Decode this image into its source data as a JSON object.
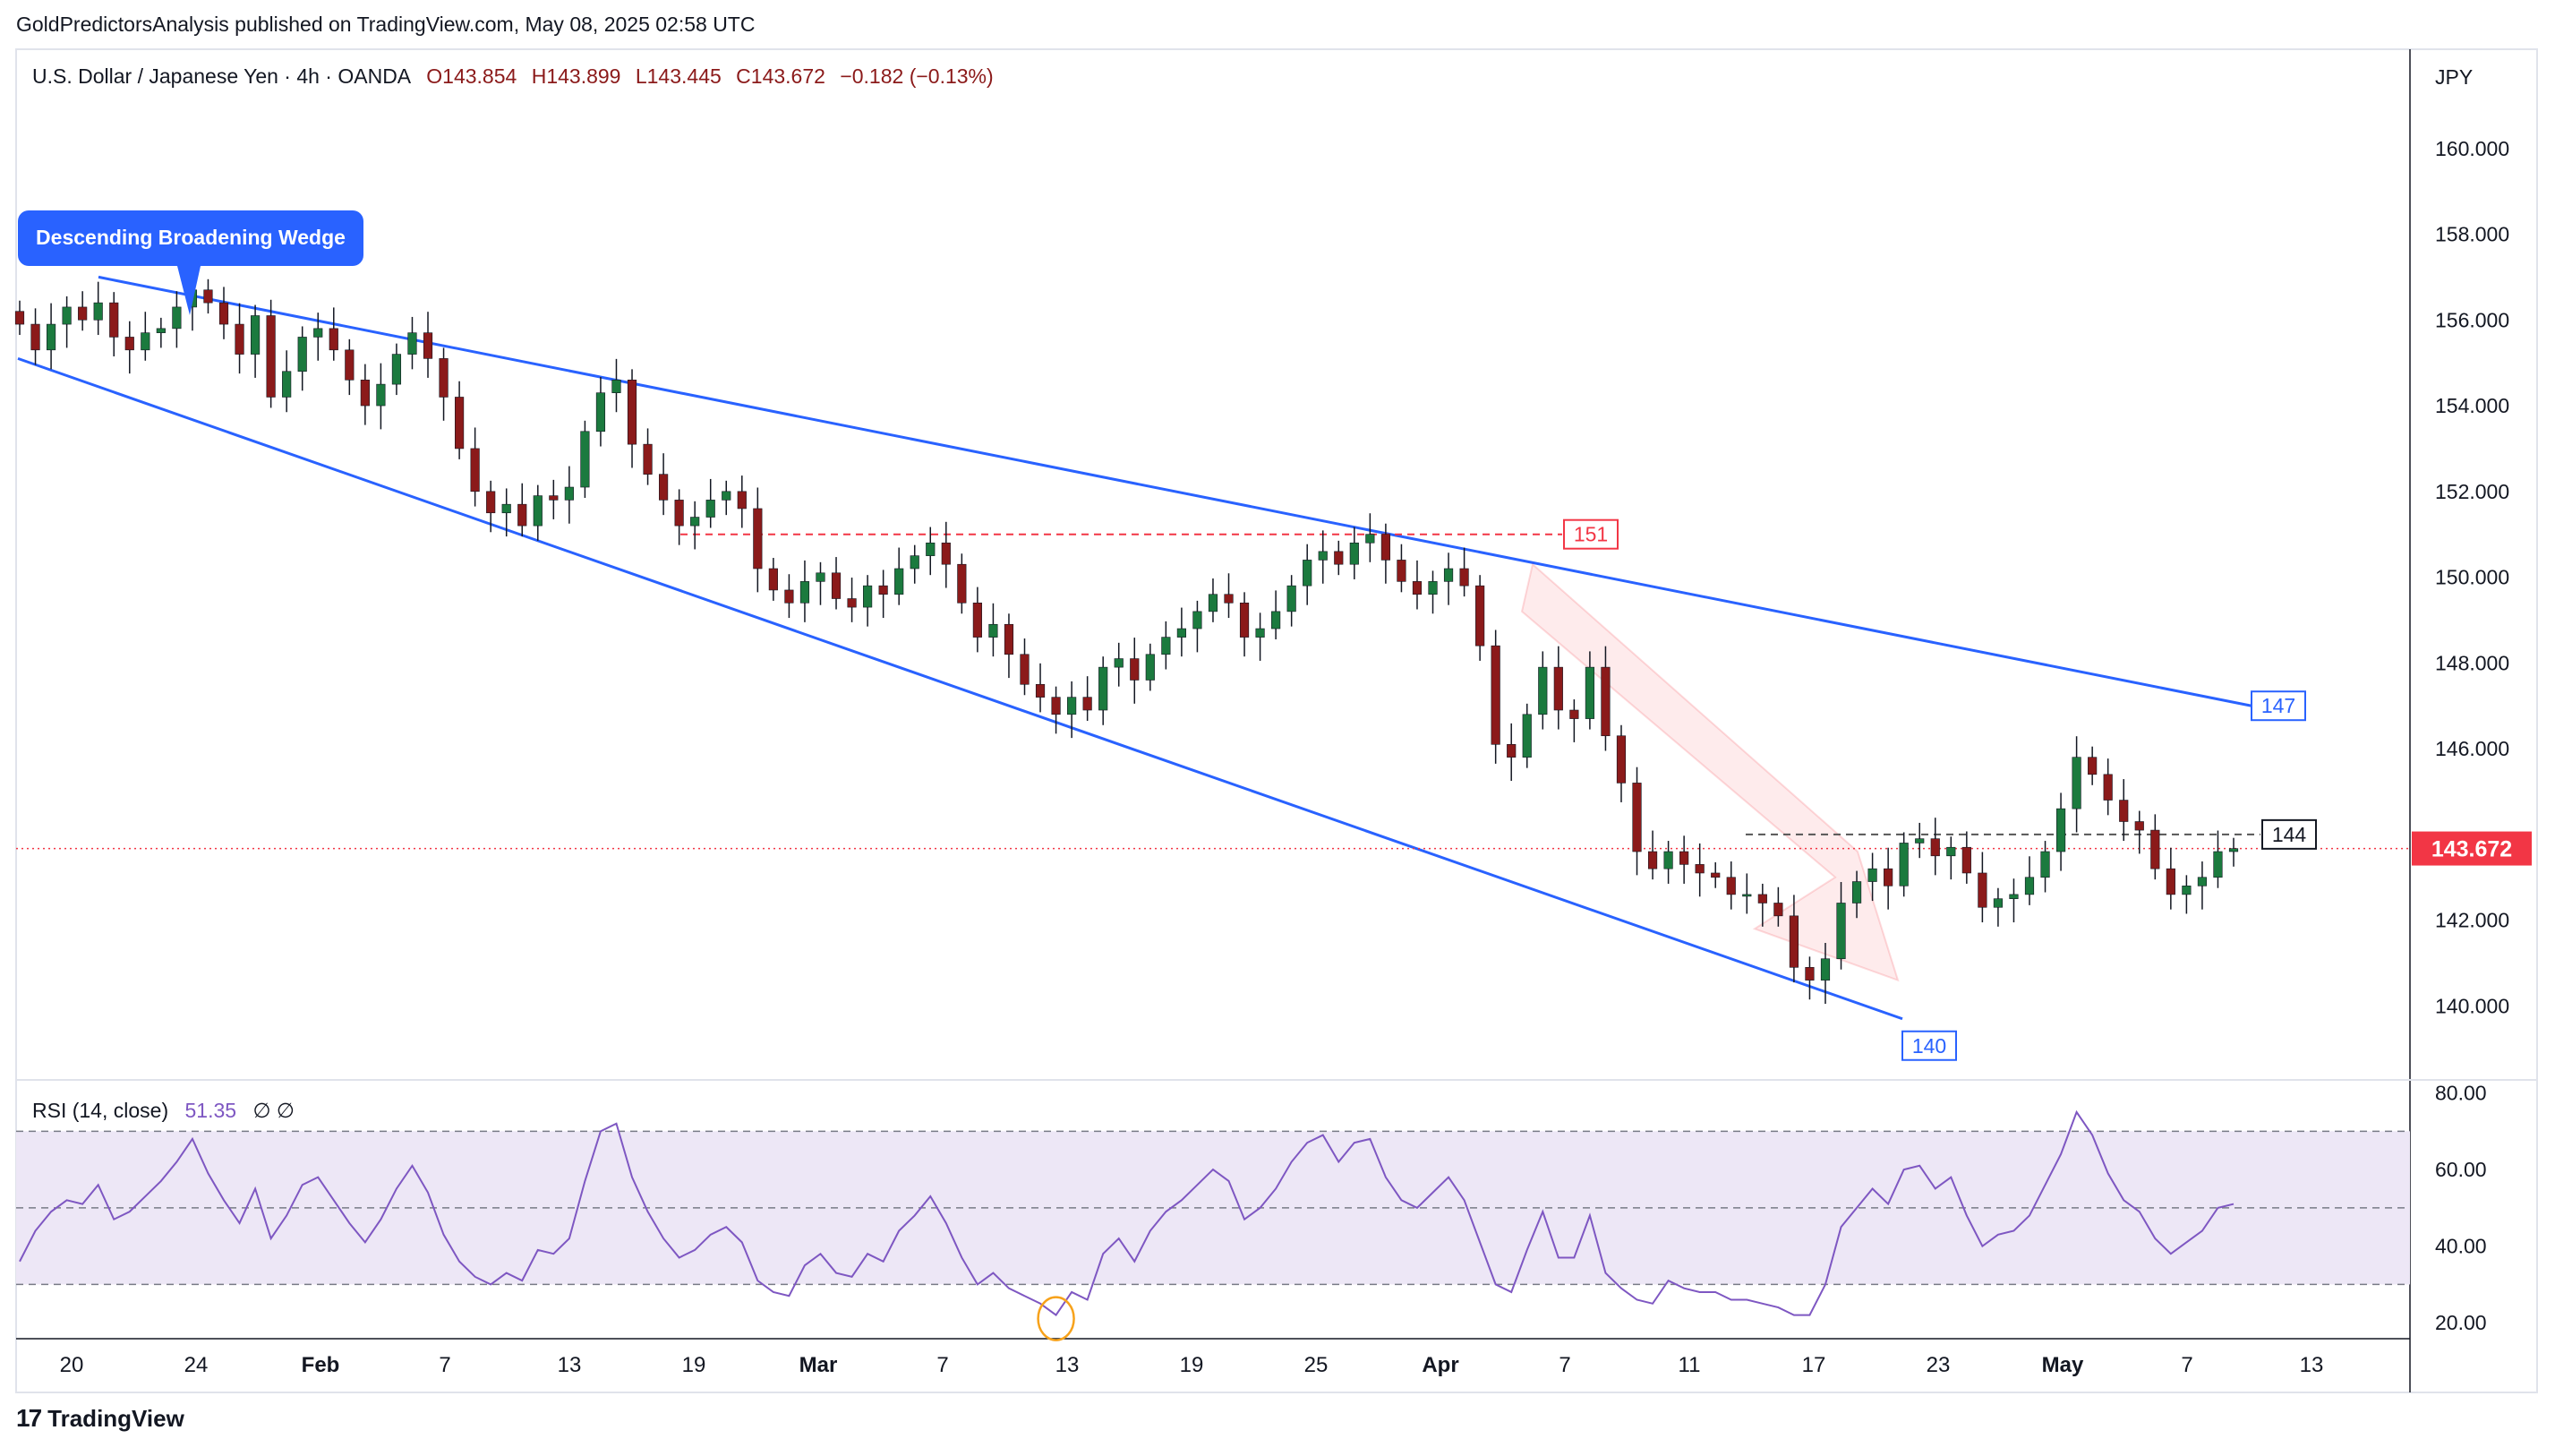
{
  "header": {
    "publish_line": "GoldPredictorsAnalysis published on TradingView.com, May 08, 2025 02:58 UTC"
  },
  "legend": {
    "symbol": "U.S. Dollar / Japanese Yen · 4h · OANDA",
    "open": "O143.854",
    "high": "H143.899",
    "low": "L143.445",
    "close": "C143.672",
    "change": "−0.182 (−0.13%)"
  },
  "currency_label": "JPY",
  "pattern_callout": "Descending Broadening Wedge",
  "level_labels": {
    "upper_line_end": "147",
    "lower_line_end": "140",
    "resistance": "151",
    "target": "144"
  },
  "last_price_tag": "143.672",
  "rsi": {
    "title": "RSI (14, close)",
    "value": "51.35",
    "flags": "∅ ∅"
  },
  "branding": {
    "logo_text": "TradingView",
    "logo_mark": "17"
  },
  "colors": {
    "candle_up": "#26a69a",
    "candle_down": "#ef5350",
    "candle_body_up": "#1b7a3e",
    "candle_body_down": "#8b1a1a",
    "trendline": "#2962ff",
    "resistance": "#f23645",
    "rsi_line": "#7e57c2",
    "rsi_band": "#ede7f6",
    "last_price": "#f23645",
    "callout": "#2962ff"
  },
  "chart_data": [
    {
      "type": "candlestick",
      "title": "U.S. Dollar / Japanese Yen · 4h · OANDA",
      "price_axis": {
        "ticks": [
          "160.000",
          "158.000",
          "156.000",
          "154.000",
          "152.000",
          "150.000",
          "148.000",
          "146.000",
          "142.000",
          "140.000"
        ],
        "ylim": [
          138.4,
          162.0
        ]
      },
      "time_axis": {
        "ticks": [
          "20",
          "24",
          "Feb",
          "7",
          "13",
          "19",
          "Mar",
          "7",
          "13",
          "19",
          "25",
          "Apr",
          "7",
          "11",
          "17",
          "23",
          "May",
          "7",
          "13"
        ]
      },
      "last_close": 143.672,
      "closes": [
        155.9,
        155.3,
        155.9,
        156.3,
        156.0,
        156.4,
        155.6,
        155.3,
        155.7,
        155.8,
        156.3,
        156.7,
        156.4,
        155.9,
        155.2,
        156.1,
        154.2,
        154.8,
        155.6,
        155.8,
        155.3,
        154.6,
        154.0,
        154.5,
        155.2,
        155.7,
        155.1,
        154.2,
        153.0,
        152.0,
        151.5,
        151.7,
        151.2,
        151.9,
        151.8,
        152.1,
        153.4,
        154.3,
        154.6,
        153.1,
        152.4,
        151.8,
        151.2,
        151.4,
        151.8,
        152.0,
        151.6,
        150.2,
        149.7,
        149.4,
        149.9,
        150.1,
        149.5,
        149.3,
        149.8,
        149.6,
        150.2,
        150.5,
        150.8,
        150.3,
        149.4,
        148.6,
        148.9,
        148.2,
        147.5,
        147.2,
        146.8,
        147.2,
        146.9,
        147.9,
        148.1,
        147.6,
        148.2,
        148.6,
        148.8,
        149.2,
        149.6,
        149.4,
        148.6,
        148.8,
        149.2,
        149.8,
        150.4,
        150.6,
        150.3,
        150.8,
        151.0,
        150.4,
        149.9,
        149.6,
        149.9,
        150.2,
        149.8,
        148.4,
        146.1,
        145.8,
        146.8,
        147.9,
        146.9,
        146.7,
        147.9,
        146.3,
        145.2,
        143.6,
        143.2,
        143.6,
        143.3,
        143.1,
        143.0,
        142.6,
        142.6,
        142.4,
        142.1,
        140.9,
        140.6,
        141.1,
        142.4,
        142.9,
        143.2,
        142.8,
        143.8,
        143.9,
        143.5,
        143.7,
        143.1,
        142.3,
        142.5,
        142.6,
        143.0,
        143.6,
        144.6,
        145.8,
        145.4,
        144.8,
        144.3,
        144.1,
        143.2,
        142.6,
        142.8,
        143.0,
        143.6,
        143.67
      ],
      "upper_trendline": {
        "start": 157.0,
        "end": 147.0
      },
      "lower_trendline": {
        "start": 155.1,
        "end": 139.7
      },
      "resistance_level": 151,
      "target_level": 144
    },
    {
      "type": "line",
      "title": "RSI (14, close)",
      "y_ticks": [
        "80.00",
        "60.00",
        "40.00",
        "20.00"
      ],
      "ylim": [
        17,
        82
      ],
      "bands": [
        70,
        50,
        30
      ],
      "values": [
        36,
        44,
        49,
        52,
        51,
        56,
        47,
        49,
        53,
        57,
        62,
        68,
        59,
        52,
        46,
        55,
        42,
        48,
        56,
        58,
        52,
        46,
        41,
        47,
        55,
        61,
        54,
        43,
        36,
        32,
        30,
        33,
        31,
        39,
        38,
        42,
        57,
        70,
        72,
        58,
        49,
        42,
        37,
        39,
        43,
        45,
        41,
        31,
        28,
        27,
        35,
        38,
        33,
        32,
        38,
        36,
        44,
        48,
        53,
        46,
        37,
        30,
        33,
        29,
        27,
        25,
        22,
        28,
        26,
        38,
        42,
        36,
        44,
        49,
        52,
        56,
        60,
        57,
        47,
        50,
        55,
        62,
        67,
        69,
        62,
        67,
        68,
        58,
        52,
        50,
        54,
        58,
        52,
        41,
        30,
        28,
        39,
        49,
        37,
        37,
        48,
        33,
        29,
        26,
        25,
        31,
        29,
        28,
        28,
        26,
        26,
        25,
        24,
        22,
        22,
        30,
        45,
        50,
        55,
        51,
        60,
        61,
        55,
        58,
        48,
        40,
        43,
        44,
        48,
        56,
        64,
        75,
        69,
        59,
        52,
        49,
        42,
        38,
        41,
        44,
        50,
        51
      ]
    }
  ]
}
